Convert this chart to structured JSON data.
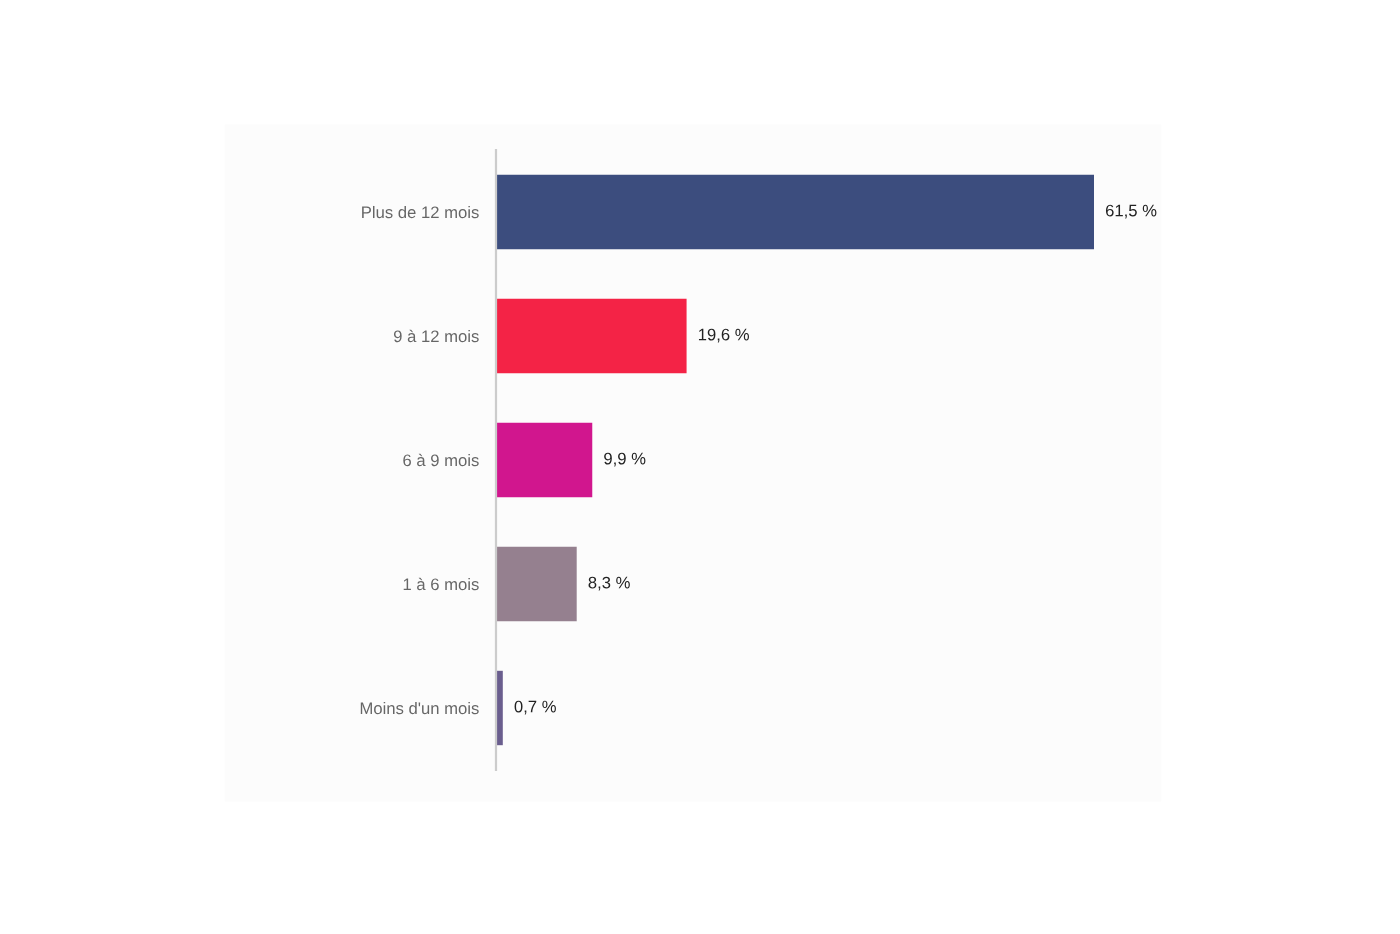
{
  "chart_data": {
    "type": "bar",
    "orientation": "horizontal",
    "categories": [
      "Plus de 12 mois",
      "9 à 12 mois",
      "6 à 9 mois",
      "1 à 6 mois",
      "Moins d'un mois"
    ],
    "values": [
      61.5,
      19.6,
      9.9,
      8.3,
      0.7
    ],
    "colors": [
      "#3c4d7e",
      "#f42346",
      "#d1168e",
      "#95808f",
      "#6a5e8e"
    ],
    "value_labels": [
      "61,5 %",
      "19,6 %",
      "9,9 %",
      "8,3 %",
      "0,7 %"
    ],
    "legend": false
  }
}
